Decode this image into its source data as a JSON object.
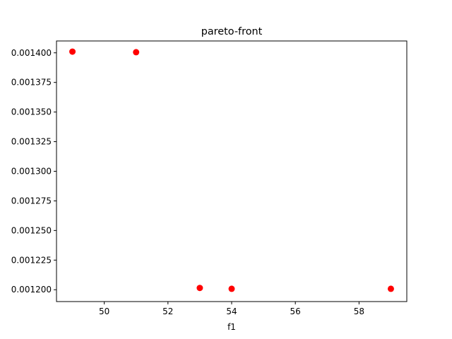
{
  "chart_data": {
    "type": "scatter",
    "title": "pareto-front",
    "xlabel": "f1",
    "ylabel": "",
    "xlim": [
      48.5,
      59.5
    ],
    "ylim": [
      0.00119,
      0.00141
    ],
    "x_ticks": [
      {
        "value": 50,
        "label": "50"
      },
      {
        "value": 52,
        "label": "52"
      },
      {
        "value": 54,
        "label": "54"
      },
      {
        "value": 56,
        "label": "56"
      },
      {
        "value": 58,
        "label": "58"
      }
    ],
    "y_ticks": [
      {
        "value": 0.0012,
        "label": "0.001200"
      },
      {
        "value": 0.001225,
        "label": "0.001225"
      },
      {
        "value": 0.00125,
        "label": "0.001250"
      },
      {
        "value": 0.001275,
        "label": "0.001275"
      },
      {
        "value": 0.0013,
        "label": "0.001300"
      },
      {
        "value": 0.001325,
        "label": "0.001325"
      },
      {
        "value": 0.00135,
        "label": "0.001350"
      },
      {
        "value": 0.001375,
        "label": "0.001375"
      },
      {
        "value": 0.0014,
        "label": "0.001400"
      }
    ],
    "grid": false,
    "series": [
      {
        "color": "#ff0000",
        "marker": "circle",
        "points": [
          {
            "x": 49,
            "y": 0.001401
          },
          {
            "x": 51,
            "y": 0.0014005
          },
          {
            "x": 53,
            "y": 0.0012015
          },
          {
            "x": 54,
            "y": 0.0012008
          },
          {
            "x": 59,
            "y": 0.0012008
          }
        ]
      }
    ]
  }
}
